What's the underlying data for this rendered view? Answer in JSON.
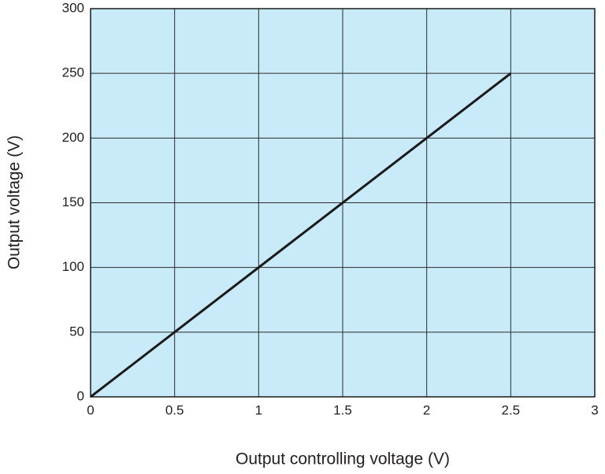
{
  "chart_data": {
    "type": "line",
    "x_label": "Output controlling voltage (V)",
    "y_label": "Output voltage (V)",
    "x": [
      0,
      2.5
    ],
    "values": [
      0,
      250
    ],
    "color": "#1a1a1a",
    "background": "#c8eaf9",
    "xlim": [
      0,
      3
    ],
    "xticks": [
      0,
      0.5,
      1,
      1.5,
      2,
      2.5,
      3
    ],
    "ylim": [
      0,
      300
    ],
    "yticks": [
      0,
      50,
      100,
      150,
      200,
      250,
      300
    ],
    "grid": true
  }
}
